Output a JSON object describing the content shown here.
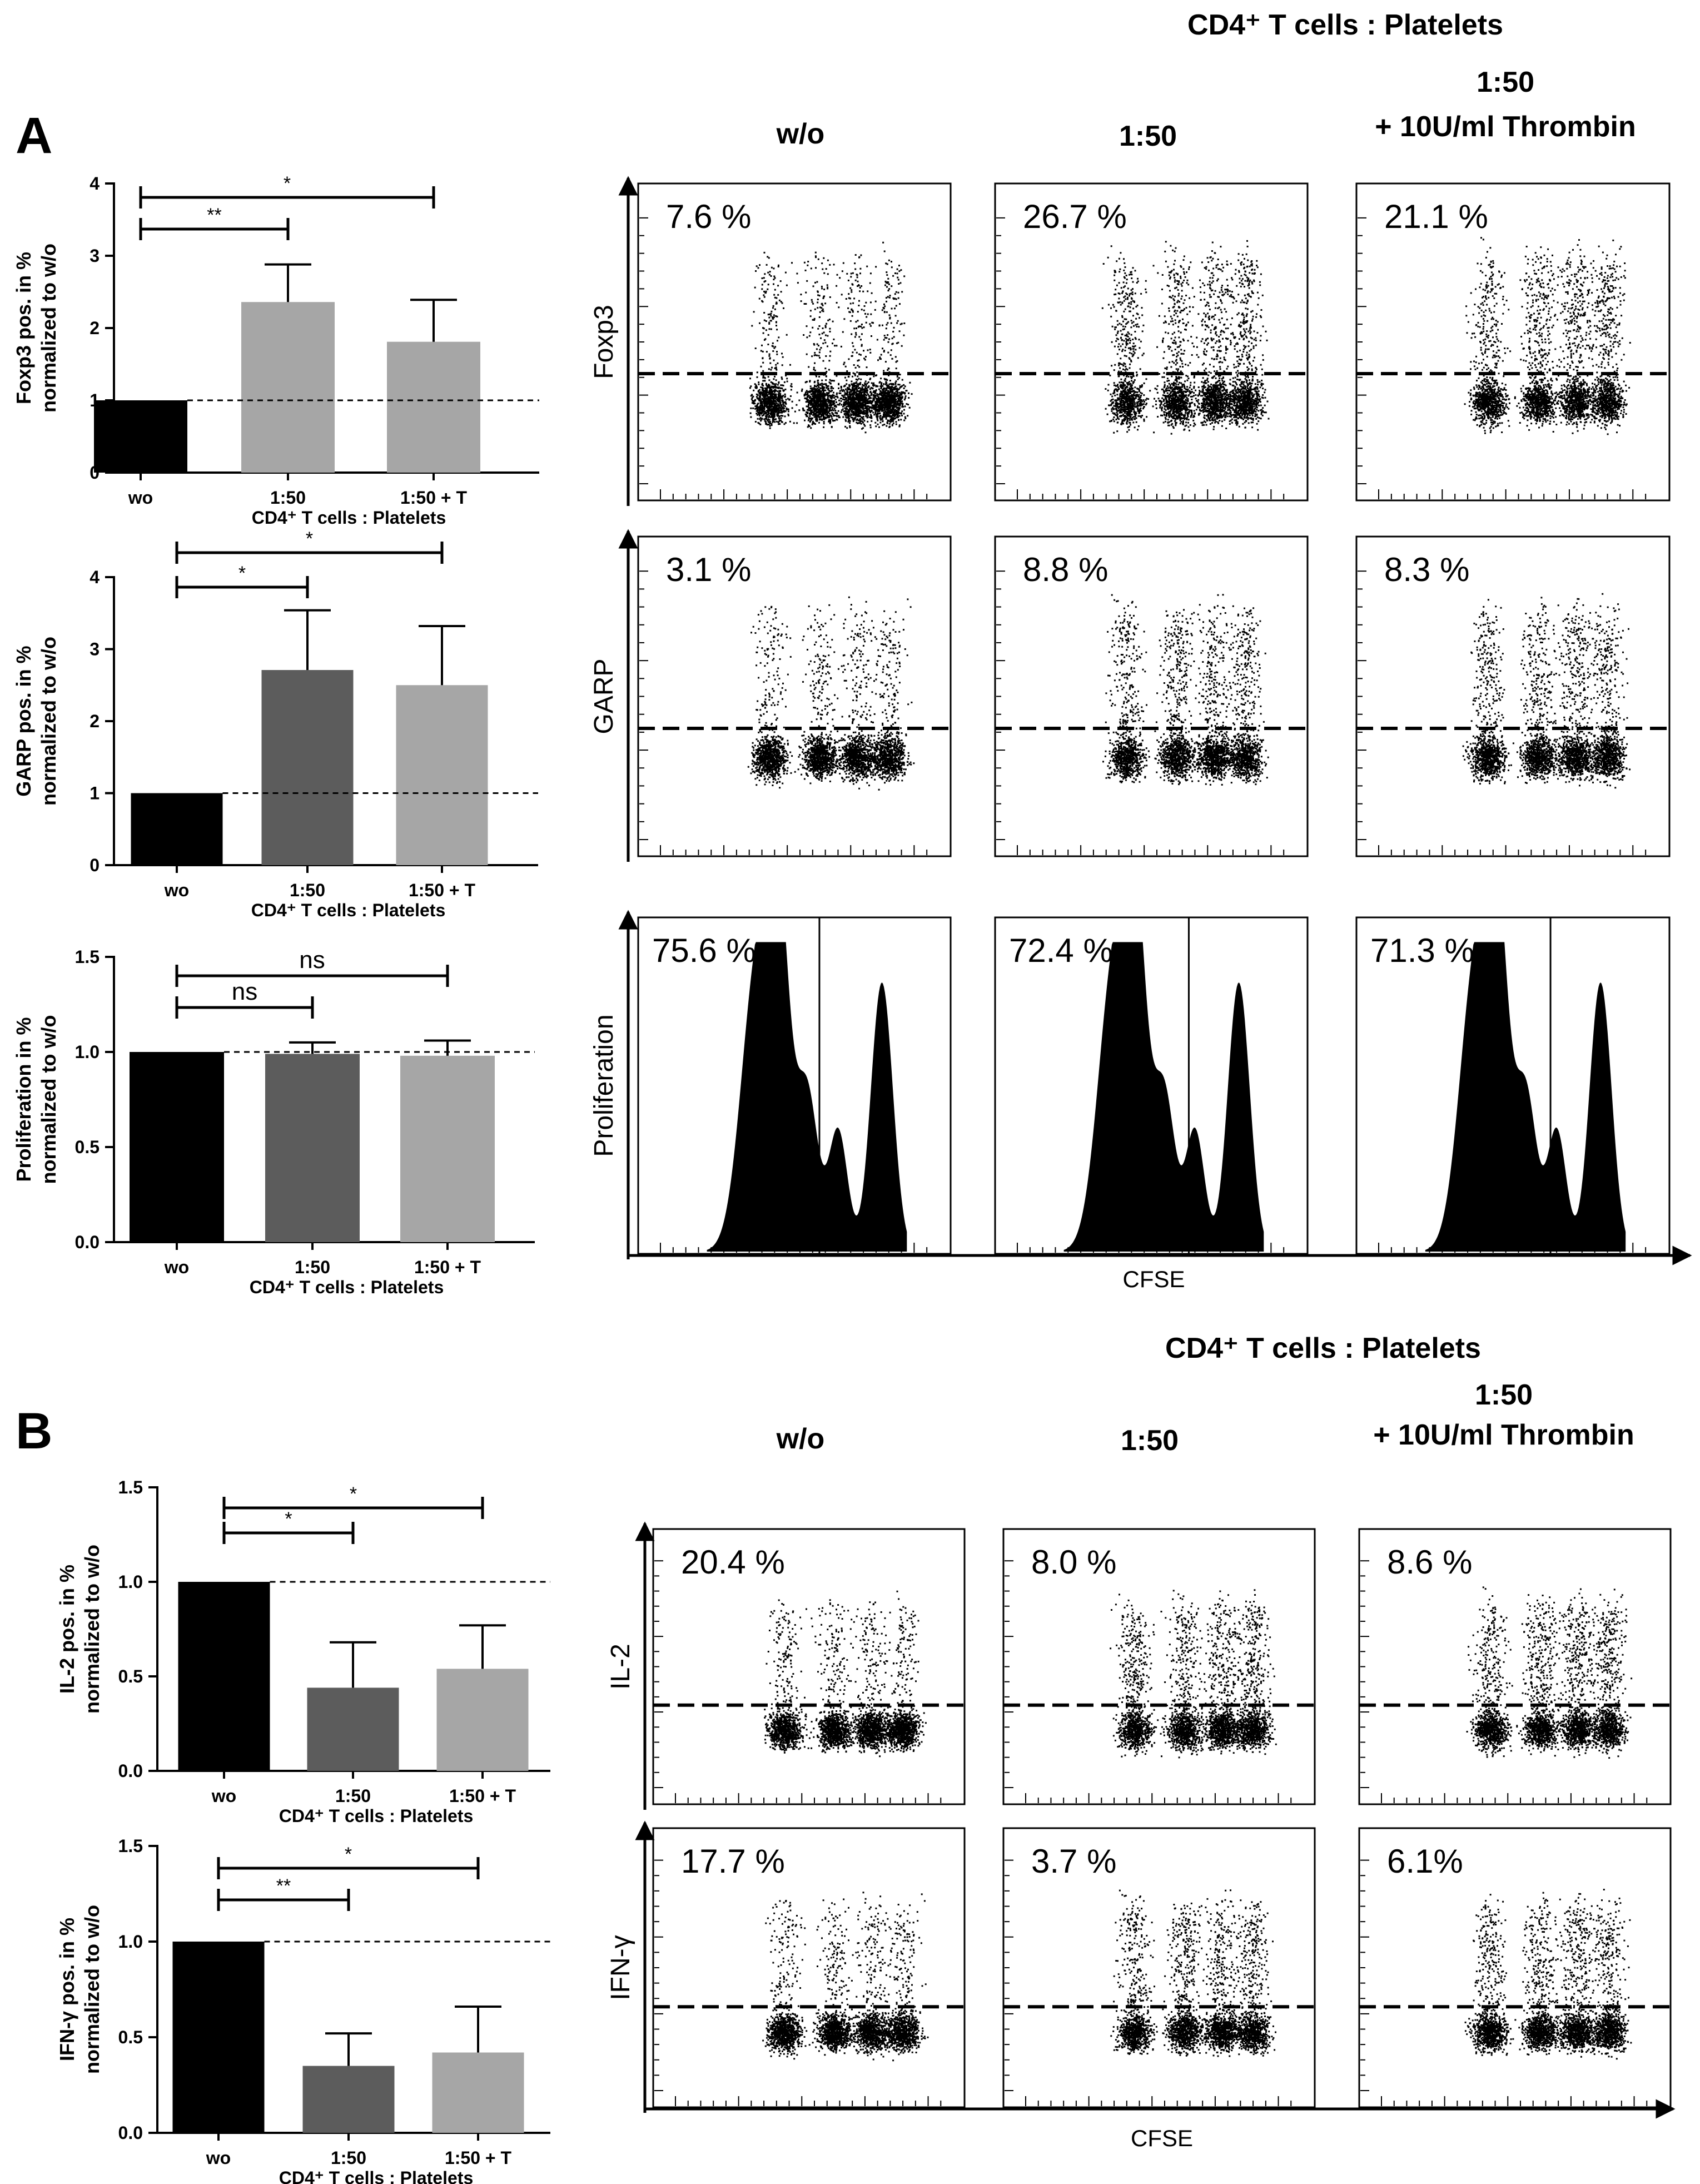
{
  "colors": {
    "wo": "#000000",
    "ratio_A1": "#a6a6a6",
    "ratio_A2": "#5c5c5c",
    "thrombin": "#a6a6a6",
    "axis": "#000000",
    "background": "#ffffff"
  },
  "panels": {
    "A": {
      "label": "A"
    },
    "B": {
      "label": "B"
    }
  },
  "flow_headers": {
    "title": "CD4⁺ T cells : Platelets",
    "col_wo": "w/o",
    "col_ratio": "1:50",
    "col_thrombin_line1": "1:50",
    "col_thrombin_line2": "+ 10U/ml Thrombin"
  },
  "chart_data": [
    {
      "id": "foxp3_bar",
      "type": "bar",
      "panel": "A",
      "title": "",
      "xlabel": "CD4⁺ T cells : Platelets",
      "ylabel_line1": "Foxp3 pos. in %",
      "ylabel_line2": "normalized to w/o",
      "categories": [
        "wo",
        "1:50",
        "1:50 + T"
      ],
      "values": [
        1.0,
        2.36,
        1.81
      ],
      "errors": [
        0,
        0.52,
        0.58
      ],
      "colors": [
        "#000000",
        "#a6a6a6",
        "#a6a6a6"
      ],
      "ylim": [
        0,
        4
      ],
      "yticks": [
        "0",
        "1",
        "2",
        "3",
        "4"
      ],
      "reference_line": 1,
      "significance": [
        {
          "from": 0,
          "to": 1,
          "label": "**"
        },
        {
          "from": 0,
          "to": 2,
          "label": "*"
        }
      ]
    },
    {
      "id": "garp_bar",
      "type": "bar",
      "panel": "A",
      "title": "",
      "xlabel": "CD4⁺ T cells : Platelets",
      "ylabel_line1": "GARP pos. in %",
      "ylabel_line2": "normalized to w/o",
      "categories": [
        "wo",
        "1:50",
        "1:50 + T"
      ],
      "values": [
        1.0,
        2.71,
        2.5
      ],
      "errors": [
        0,
        0.83,
        0.82
      ],
      "colors": [
        "#000000",
        "#5c5c5c",
        "#a6a6a6"
      ],
      "ylim": [
        0,
        4
      ],
      "yticks": [
        "0",
        "1",
        "2",
        "3",
        "4"
      ],
      "reference_line": 1,
      "significance": [
        {
          "from": 0,
          "to": 1,
          "label": "*"
        },
        {
          "from": 0,
          "to": 2,
          "label": "*"
        }
      ]
    },
    {
      "id": "prolif_bar",
      "type": "bar",
      "panel": "A",
      "title": "",
      "xlabel": "CD4⁺ T cells : Platelets",
      "ylabel_line1": "Proliferation in %",
      "ylabel_line2": "normalized to w/o",
      "categories": [
        "wo",
        "1:50",
        "1:50 + T"
      ],
      "values": [
        1.0,
        0.99,
        0.98
      ],
      "errors": [
        0,
        0.06,
        0.08
      ],
      "colors": [
        "#000000",
        "#5c5c5c",
        "#a6a6a6"
      ],
      "ylim": [
        0,
        1.5
      ],
      "yticks": [
        "0.0",
        "0.5",
        "1.0",
        "1.5"
      ],
      "reference_line": 1,
      "significance": [
        {
          "from": 0,
          "to": 1,
          "label": "ns"
        },
        {
          "from": 0,
          "to": 2,
          "label": "ns"
        }
      ]
    },
    {
      "id": "il2_bar",
      "type": "bar",
      "panel": "B",
      "title": "",
      "xlabel": "CD4⁺ T cells : Platelets",
      "ylabel_line1": "IL-2 pos. in %",
      "ylabel_line2": "normalized to w/o",
      "categories": [
        "wo",
        "1:50",
        "1:50 + T"
      ],
      "values": [
        1.0,
        0.44,
        0.54
      ],
      "errors": [
        0,
        0.24,
        0.23
      ],
      "colors": [
        "#000000",
        "#5c5c5c",
        "#a6a6a6"
      ],
      "ylim": [
        0,
        1.5
      ],
      "yticks": [
        "0.0",
        "0.5",
        "1.0",
        "1.5"
      ],
      "reference_line": 1,
      "significance": [
        {
          "from": 0,
          "to": 1,
          "label": "*"
        },
        {
          "from": 0,
          "to": 2,
          "label": "*"
        }
      ]
    },
    {
      "id": "ifng_bar",
      "type": "bar",
      "panel": "B",
      "title": "",
      "xlabel": "CD4⁺ T cells : Platelets",
      "ylabel_line1": "IFN-γ pos. in %",
      "ylabel_line2": "normalized to w/o",
      "categories": [
        "wo",
        "1:50",
        "1:50 + T"
      ],
      "values": [
        1.0,
        0.35,
        0.42
      ],
      "errors": [
        0,
        0.17,
        0.24
      ],
      "colors": [
        "#000000",
        "#5c5c5c",
        "#a6a6a6"
      ],
      "ylim": [
        0,
        1.5
      ],
      "yticks": [
        "0.0",
        "0.5",
        "1.0",
        "1.5"
      ],
      "reference_line": 1,
      "significance": [
        {
          "from": 0,
          "to": 1,
          "label": "**"
        },
        {
          "from": 0,
          "to": 2,
          "label": "*"
        }
      ]
    },
    {
      "id": "flow_A",
      "type": "scatter",
      "panel": "A",
      "title": "CD4⁺ T cells : Platelets",
      "columns": [
        "w/o",
        "1:50",
        "1:50 + 10U/ml Thrombin"
      ],
      "xlabel": "CFSE",
      "rows": [
        {
          "marker": "Foxp3",
          "kind": "dot",
          "percentages": [
            "7.6 %",
            "26.7 %",
            "21.1 %"
          ],
          "gate": 0.6
        },
        {
          "marker": "GARP",
          "kind": "dot",
          "percentages": [
            "3.1 %",
            "8.8 %",
            "8.3 %"
          ],
          "gate": 0.6
        },
        {
          "marker": "Proliferation",
          "kind": "histogram",
          "percentages": [
            "75.6 %",
            "72.4 %",
            "71.3 %"
          ]
        }
      ]
    },
    {
      "id": "flow_B",
      "type": "scatter",
      "panel": "B",
      "title": "CD4⁺ T cells : Platelets",
      "columns": [
        "w/o",
        "1:50",
        "1:50 + 10U/ml Thrombin"
      ],
      "xlabel": "CFSE",
      "rows": [
        {
          "marker": "IL-2",
          "kind": "dot",
          "percentages": [
            "20.4 %",
            "8.0 %",
            "8.6 %"
          ],
          "gate": 0.64
        },
        {
          "marker": "IFN-γ",
          "kind": "dot",
          "percentages": [
            "17.7 %",
            "3.7 %",
            "6.1%"
          ],
          "gate": 0.64
        }
      ]
    }
  ]
}
